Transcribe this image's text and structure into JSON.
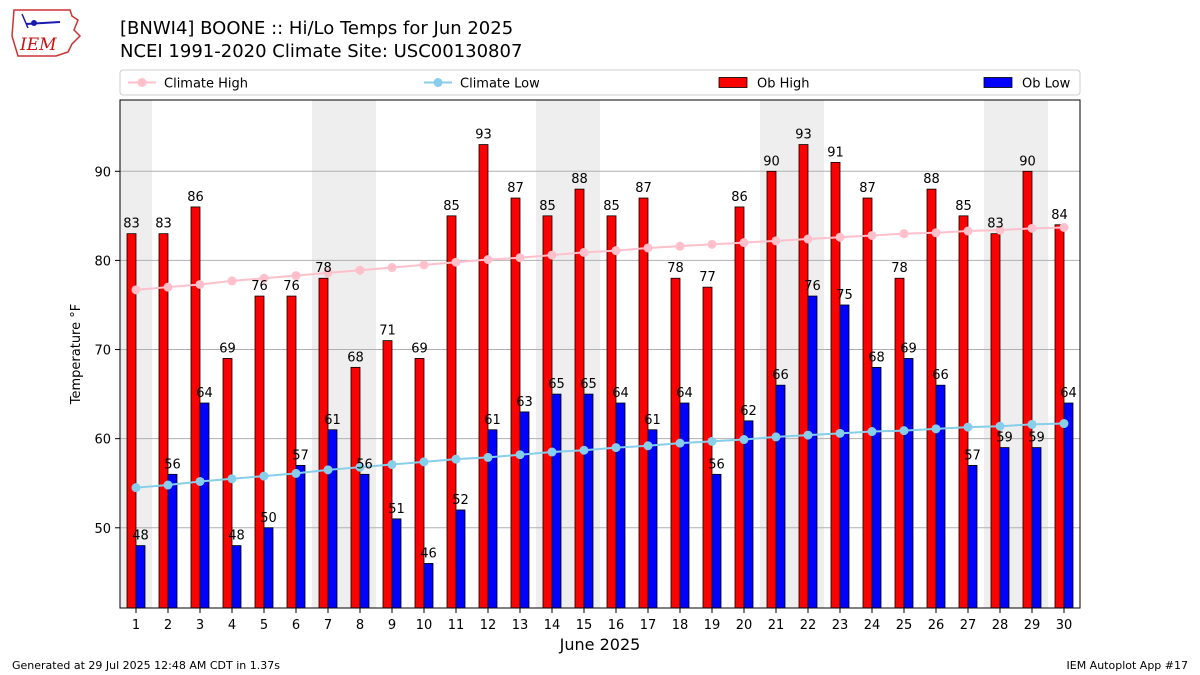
{
  "logo": {
    "text": "IEM"
  },
  "title_line1": "[BNWI4] BOONE :: Hi/Lo Temps for Jun 2025",
  "title_line2": "NCEI 1991-2020 Climate Site: USC00130807",
  "footer": {
    "generated": "Generated at 29 Jul 2025 12:48 AM CDT in 1.37s",
    "app": "IEM Autoplot App #17"
  },
  "chart_data": {
    "type": "bar",
    "xlabel": "June 2025",
    "ylabel": "Temperature °F",
    "ylim": [
      41,
      98
    ],
    "yticks": [
      50,
      60,
      70,
      80,
      90
    ],
    "grid": true,
    "legend_position": "top",
    "categories": [
      "1",
      "2",
      "3",
      "4",
      "5",
      "6",
      "7",
      "8",
      "9",
      "10",
      "11",
      "12",
      "13",
      "14",
      "15",
      "16",
      "17",
      "18",
      "19",
      "20",
      "21",
      "22",
      "23",
      "24",
      "25",
      "26",
      "27",
      "28",
      "29",
      "30"
    ],
    "weekend_shading": [
      [
        1
      ],
      [
        7,
        8
      ],
      [
        14,
        15
      ],
      [
        21,
        22
      ],
      [
        28,
        29
      ]
    ],
    "series": [
      {
        "name": "Climate High",
        "kind": "line",
        "color": "#ffc0cb",
        "values": [
          76.7,
          77.0,
          77.3,
          77.7,
          78.0,
          78.3,
          78.6,
          78.9,
          79.2,
          79.5,
          79.8,
          80.1,
          80.3,
          80.6,
          80.9,
          81.1,
          81.4,
          81.6,
          81.8,
          82.0,
          82.2,
          82.4,
          82.6,
          82.8,
          83.0,
          83.1,
          83.3,
          83.4,
          83.6,
          83.7
        ]
      },
      {
        "name": "Climate Low",
        "kind": "line",
        "color": "#87ceeb",
        "values": [
          54.5,
          54.8,
          55.2,
          55.5,
          55.8,
          56.1,
          56.5,
          56.8,
          57.1,
          57.4,
          57.7,
          57.9,
          58.2,
          58.5,
          58.7,
          59.0,
          59.2,
          59.5,
          59.7,
          59.9,
          60.2,
          60.4,
          60.6,
          60.8,
          60.9,
          61.1,
          61.3,
          61.4,
          61.6,
          61.7
        ]
      },
      {
        "name": "Ob High",
        "kind": "bar",
        "color": "#ff0000",
        "values": [
          83,
          83,
          86,
          69,
          76,
          76,
          78,
          68,
          71,
          69,
          85,
          93,
          87,
          85,
          88,
          85,
          87,
          78,
          77,
          86,
          90,
          93,
          91,
          87,
          78,
          88,
          85,
          83,
          90,
          84
        ]
      },
      {
        "name": "Ob Low",
        "kind": "bar",
        "color": "#0000ff",
        "values": [
          48,
          56,
          64,
          48,
          50,
          57,
          61,
          56,
          51,
          46,
          52,
          61,
          63,
          65,
          65,
          64,
          61,
          64,
          56,
          62,
          66,
          76,
          75,
          68,
          69,
          66,
          57,
          59,
          59,
          64
        ]
      }
    ]
  }
}
